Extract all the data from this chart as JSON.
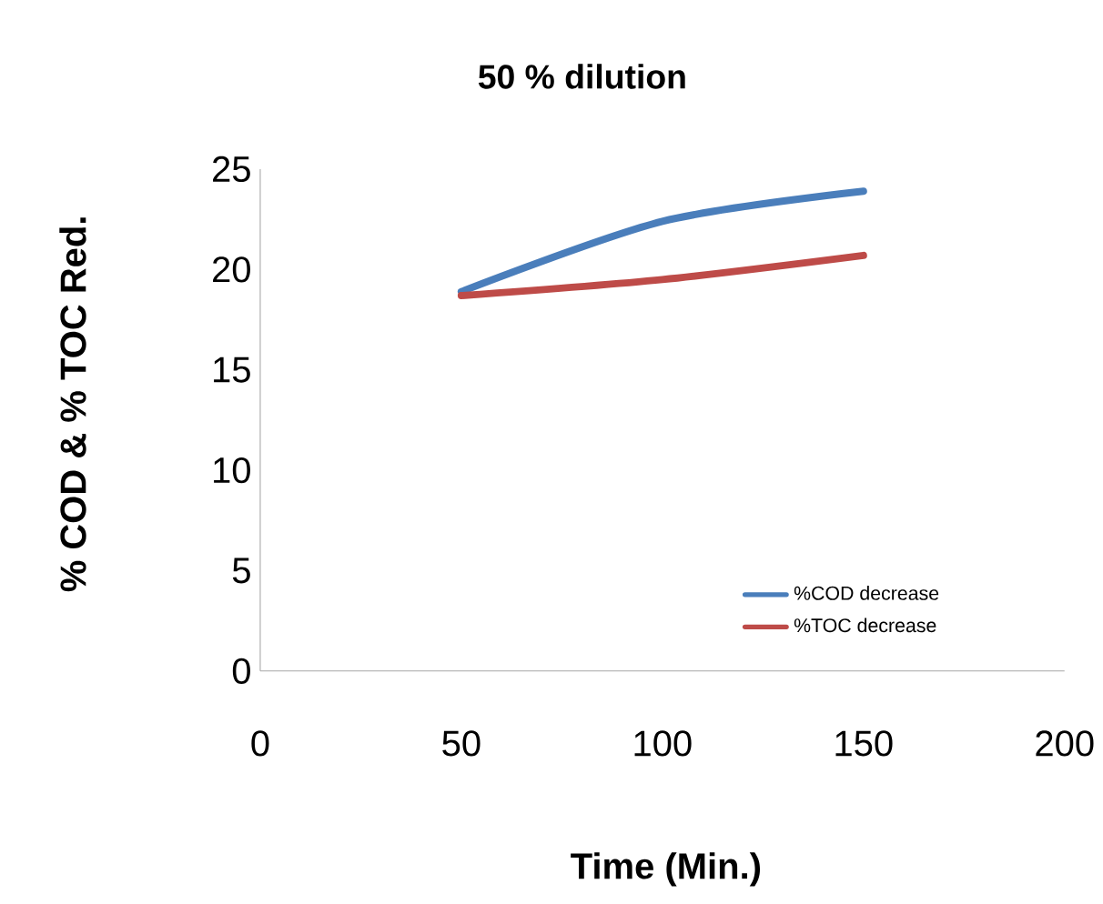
{
  "chart_data": {
    "type": "line",
    "title": "50 % dilution",
    "xlabel": "Time (Min.)",
    "ylabel": "% COD & % TOC Red.",
    "x": [
      50,
      100,
      150
    ],
    "series": [
      {
        "name": "%COD decrease",
        "color": "#4a7ebb",
        "values": [
          18.9,
          22.4,
          23.9
        ]
      },
      {
        "name": "%TOC decrease",
        "color": "#be4b48",
        "values": [
          18.7,
          19.5,
          20.7
        ]
      }
    ],
    "xlim": [
      0,
      200
    ],
    "ylim": [
      0,
      25
    ],
    "xticks": [
      0,
      50,
      100,
      150,
      200
    ],
    "yticks": [
      0,
      5,
      10,
      15,
      20,
      25
    ],
    "legend": "bottom right",
    "marker": "none",
    "line_style": "solid"
  }
}
